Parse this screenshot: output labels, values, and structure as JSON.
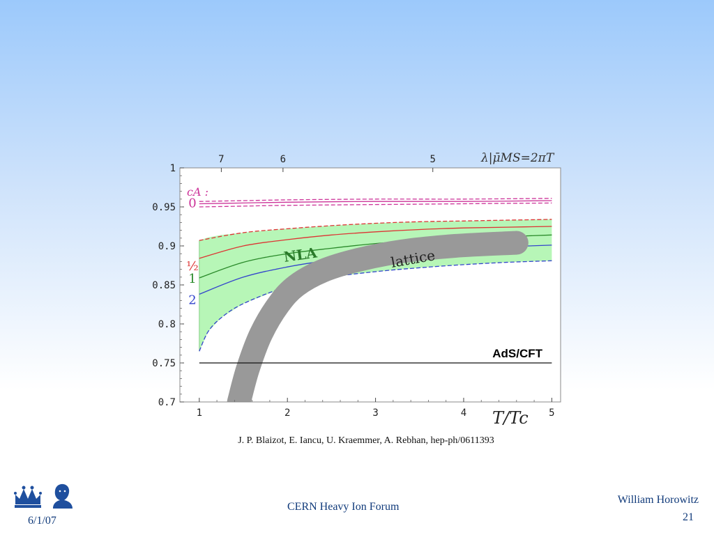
{
  "chart_data": {
    "type": "line",
    "top_axis_label": "λ|μ̄MS=2πT",
    "top_axis_ticks": [
      {
        "x": 1.25,
        "label": "7"
      },
      {
        "x": 1.95,
        "label": "6"
      },
      {
        "x": 3.65,
        "label": "5"
      }
    ],
    "xlabel": "T/Tc",
    "xlim": [
      0.78,
      5.1
    ],
    "ylim": [
      0.7,
      1.0
    ],
    "xticks": [
      1,
      2,
      3,
      4,
      5
    ],
    "xtick_labels": [
      "1",
      "2",
      "3",
      "4",
      "5"
    ],
    "yticks": [
      0.7,
      0.75,
      0.8,
      0.85,
      0.9,
      0.95,
      1.0
    ],
    "ytick_labels": [
      "0.7",
      "0.75",
      "0.8",
      "0.85",
      "0.9",
      "0.95",
      "1"
    ],
    "legend_title": "cA :",
    "legend_entries": [
      {
        "label": "0",
        "color": "#cc3399",
        "y": 0.955
      },
      {
        "label": "½",
        "color": "#dd3333",
        "y": 0.874
      },
      {
        "label": "1",
        "color": "#2a8a2a",
        "y": 0.858
      },
      {
        "label": "2",
        "color": "#3344cc",
        "y": 0.831
      }
    ],
    "series": [
      {
        "label_ref": "0",
        "color": "#cc3399",
        "style": "solid",
        "x": [
          1.0,
          1.5,
          2.0,
          3.0,
          4.0,
          5.0
        ],
        "y": [
          0.954,
          0.955,
          0.956,
          0.957,
          0.957,
          0.958
        ]
      },
      {
        "label_ref": "0",
        "color": "#cc3399",
        "style": "dashed",
        "x": [
          1.0,
          1.5,
          2.0,
          3.0,
          4.0,
          5.0
        ],
        "y": [
          0.957,
          0.958,
          0.959,
          0.96,
          0.96,
          0.961
        ]
      },
      {
        "label_ref": "0",
        "color": "#cc3399",
        "style": "dashed",
        "x": [
          1.0,
          1.5,
          2.0,
          3.0,
          4.0,
          5.0
        ],
        "y": [
          0.95,
          0.951,
          0.952,
          0.953,
          0.954,
          0.955
        ]
      },
      {
        "label_ref": "½",
        "color": "#dd3333",
        "style": "solid",
        "x": [
          1.0,
          1.5,
          2.0,
          2.5,
          3.0,
          3.5,
          4.0,
          4.5,
          5.0
        ],
        "y": [
          0.884,
          0.9,
          0.908,
          0.914,
          0.918,
          0.921,
          0.923,
          0.924,
          0.925
        ]
      },
      {
        "label_ref": "1",
        "color": "#2a8a2a",
        "style": "solid",
        "x": [
          1.0,
          1.5,
          2.0,
          2.5,
          3.0,
          3.5,
          4.0,
          4.5,
          5.0
        ],
        "y": [
          0.859,
          0.879,
          0.89,
          0.897,
          0.903,
          0.907,
          0.91,
          0.912,
          0.914
        ]
      },
      {
        "label_ref": "2",
        "color": "#3344cc",
        "style": "solid",
        "x": [
          1.0,
          1.5,
          2.0,
          2.5,
          3.0,
          3.5,
          4.0,
          4.5,
          5.0
        ],
        "y": [
          0.838,
          0.86,
          0.873,
          0.882,
          0.888,
          0.893,
          0.896,
          0.899,
          0.901
        ]
      },
      {
        "label_ref": "band-top",
        "color": "#dd3333",
        "style": "dashed",
        "x": [
          1.0,
          1.5,
          2.0,
          2.5,
          3.0,
          3.5,
          4.0,
          4.5,
          5.0
        ],
        "y": [
          0.907,
          0.917,
          0.922,
          0.926,
          0.929,
          0.931,
          0.932,
          0.933,
          0.934
        ]
      },
      {
        "label_ref": "band-bottom",
        "color": "#3344cc",
        "style": "dashed",
        "x": [
          1.0,
          1.1,
          1.25,
          1.5,
          2.0,
          2.5,
          3.0,
          3.5,
          4.0,
          4.5,
          5.0
        ],
        "y": [
          0.765,
          0.79,
          0.808,
          0.826,
          0.848,
          0.86,
          0.867,
          0.872,
          0.876,
          0.879,
          0.881
        ]
      }
    ],
    "nla_band": {
      "fill": "#aaf5aa",
      "x": [
        1.0,
        1.1,
        1.25,
        1.5,
        2.0,
        2.5,
        3.0,
        3.5,
        4.0,
        4.5,
        5.0
      ],
      "upper": [
        0.907,
        0.911,
        0.914,
        0.917,
        0.922,
        0.926,
        0.929,
        0.931,
        0.932,
        0.933,
        0.934
      ],
      "lower": [
        0.765,
        0.79,
        0.808,
        0.826,
        0.848,
        0.86,
        0.867,
        0.872,
        0.876,
        0.879,
        0.881
      ],
      "label": "NLA",
      "label_color": "#2a7a2a"
    },
    "lattice_band": {
      "color": "#999999",
      "label": "lattice",
      "x": [
        1.45,
        1.55,
        1.7,
        1.9,
        2.1,
        2.4,
        2.8,
        3.3,
        3.9,
        4.6
      ],
      "y": [
        0.7,
        0.742,
        0.787,
        0.825,
        0.849,
        0.868,
        0.882,
        0.893,
        0.9,
        0.904
      ]
    },
    "reference_line": {
      "y": 0.75,
      "label": "AdS/CFT",
      "color": "#111111"
    }
  },
  "citation": "J. P. Blaizot, E. Iancu, U. Kraemmer, A. Rebhan, hep-ph/0611393",
  "footer": {
    "center": "CERN Heavy Ion Forum",
    "date": "6/1/07",
    "author": "William Horowitz",
    "page": "21"
  },
  "logos": [
    "crown-logo",
    "portrait-logo"
  ],
  "colors": {
    "footer_text": "#103a7a",
    "logo_blue": "#1f4f9e"
  }
}
